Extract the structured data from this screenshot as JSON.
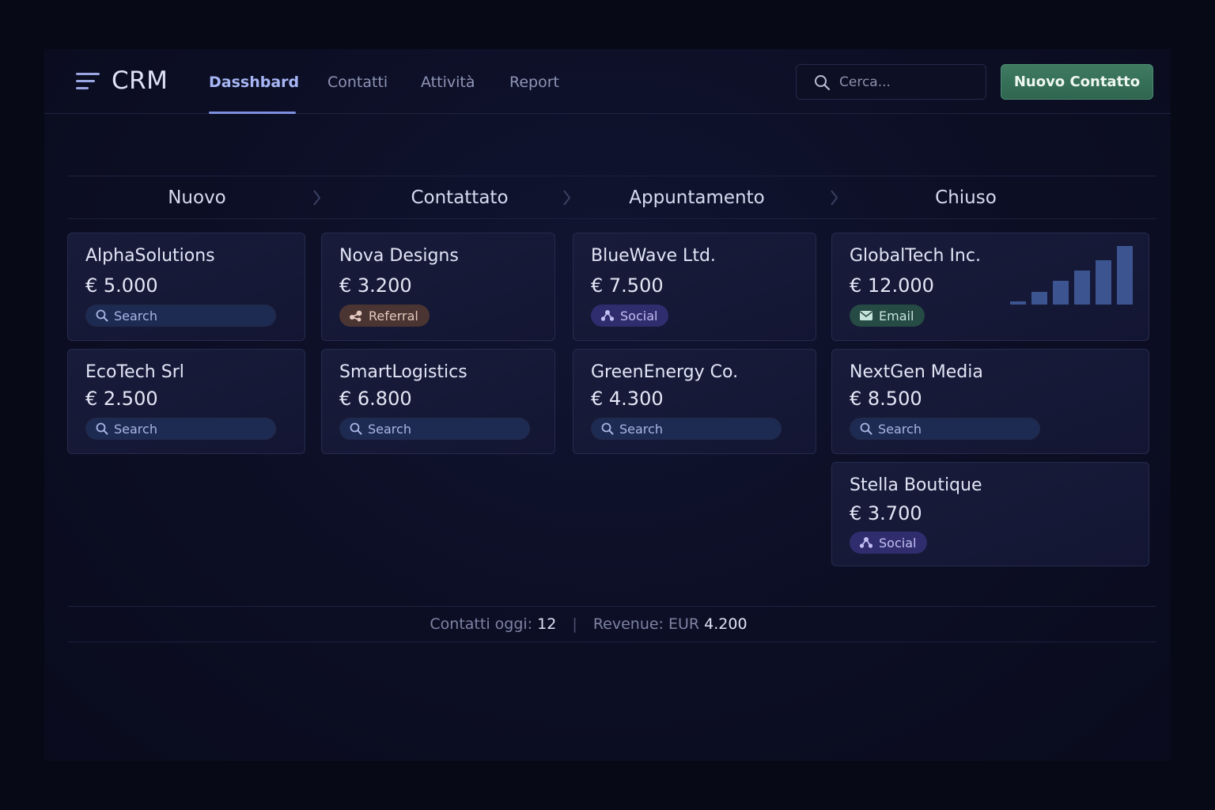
{
  "app": {
    "brand": "CRM"
  },
  "nav": {
    "items": [
      {
        "label": "Dasshbard",
        "active": true
      },
      {
        "label": "Contatti",
        "active": false
      },
      {
        "label": "Attività",
        "active": false
      },
      {
        "label": "Report",
        "active": false
      }
    ]
  },
  "search": {
    "placeholder": "Cerca...",
    "icon": "search-icon"
  },
  "actions": {
    "new_contact": "Nuovo Contatto"
  },
  "pipeline": {
    "stages": [
      "Nuovo",
      "Contattato",
      "Appuntamento",
      "Chiuso"
    ],
    "columns": [
      {
        "cards": [
          {
            "name": "AlphaSolutions",
            "amount": "€ 5.000",
            "source": "Search"
          },
          {
            "name": "EcoTech Srl",
            "amount": "€ 2.500",
            "source": "Search"
          }
        ]
      },
      {
        "cards": [
          {
            "name": "Nova Designs",
            "amount": "€ 3.200",
            "source": "Referral"
          },
          {
            "name": "SmartLogistics",
            "amount": "€ 6.800",
            "source": "Search"
          }
        ]
      },
      {
        "cards": [
          {
            "name": "BlueWave Ltd.",
            "amount": "€ 7.500",
            "source": "Social"
          },
          {
            "name": "GreenEnergy Co.",
            "amount": "€ 4.300",
            "source": "Search"
          }
        ]
      },
      {
        "cards": [
          {
            "name": "GlobalTech Inc.",
            "amount": "€ 12.000",
            "source": "Email"
          },
          {
            "name": "NextGen Media",
            "amount": "€ 8.500",
            "source": "Search"
          },
          {
            "name": "Stella Boutique",
            "amount": "€ 3.700",
            "source": "Social"
          }
        ]
      }
    ]
  },
  "mini_chart": {
    "relative_values": [
      0.06,
      0.22,
      0.4,
      0.58,
      0.76,
      1.0
    ]
  },
  "stats": {
    "contacts_label": "Contatti oggi:",
    "contacts_value": "12",
    "separator": "|",
    "revenue_label": "Revenue: EUR",
    "revenue_value": "4.200"
  },
  "colors": {
    "accent": "#7d8fe0",
    "primary_button": "#3f7a61",
    "tag_search": "#1d2a52",
    "tag_referral": "#4a3533",
    "tag_social": "#2f2d6e",
    "tag_email": "#264a44"
  }
}
